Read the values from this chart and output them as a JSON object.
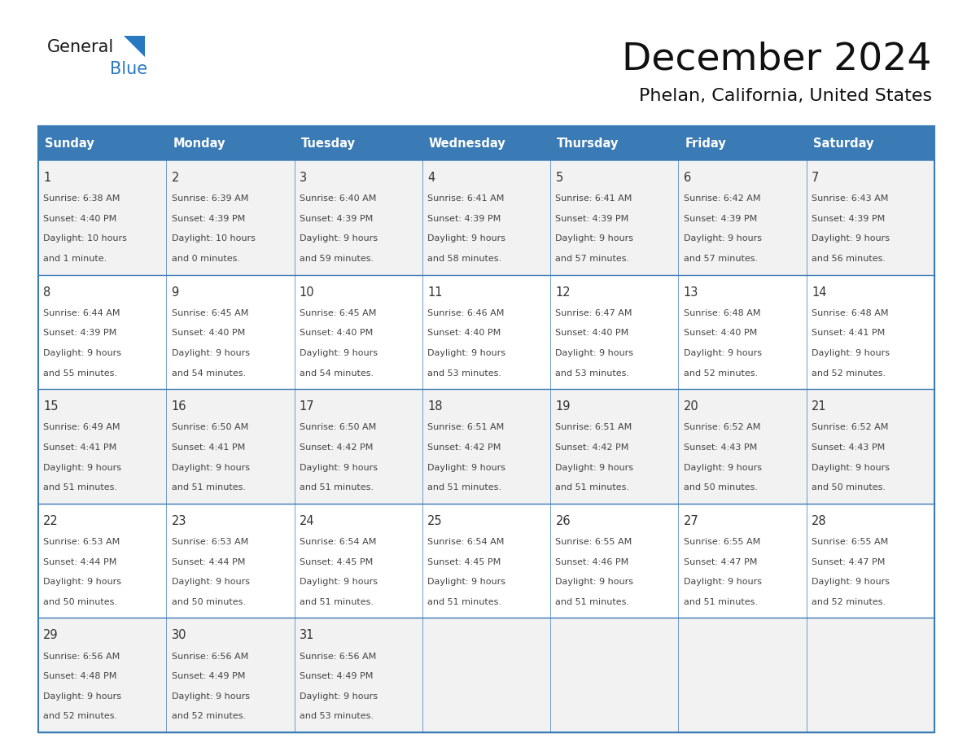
{
  "title": "December 2024",
  "subtitle": "Phelan, California, United States",
  "days_of_week": [
    "Sunday",
    "Monday",
    "Tuesday",
    "Wednesday",
    "Thursday",
    "Friday",
    "Saturday"
  ],
  "header_bg": "#3a7ab5",
  "header_text_color": "#ffffff",
  "row_bg_odd": "#f2f2f2",
  "row_bg_even": "#ffffff",
  "day_num_color": "#333333",
  "text_color": "#444444",
  "border_color": "#3a7ab5",
  "calendar_data": [
    [
      {
        "day": 1,
        "sunrise": "6:38 AM",
        "sunset": "4:40 PM",
        "daylight": "10 hours",
        "daylight2": "and 1 minute."
      },
      {
        "day": 2,
        "sunrise": "6:39 AM",
        "sunset": "4:39 PM",
        "daylight": "10 hours",
        "daylight2": "and 0 minutes."
      },
      {
        "day": 3,
        "sunrise": "6:40 AM",
        "sunset": "4:39 PM",
        "daylight": "9 hours",
        "daylight2": "and 59 minutes."
      },
      {
        "day": 4,
        "sunrise": "6:41 AM",
        "sunset": "4:39 PM",
        "daylight": "9 hours",
        "daylight2": "and 58 minutes."
      },
      {
        "day": 5,
        "sunrise": "6:41 AM",
        "sunset": "4:39 PM",
        "daylight": "9 hours",
        "daylight2": "and 57 minutes."
      },
      {
        "day": 6,
        "sunrise": "6:42 AM",
        "sunset": "4:39 PM",
        "daylight": "9 hours",
        "daylight2": "and 57 minutes."
      },
      {
        "day": 7,
        "sunrise": "6:43 AM",
        "sunset": "4:39 PM",
        "daylight": "9 hours",
        "daylight2": "and 56 minutes."
      }
    ],
    [
      {
        "day": 8,
        "sunrise": "6:44 AM",
        "sunset": "4:39 PM",
        "daylight": "9 hours",
        "daylight2": "and 55 minutes."
      },
      {
        "day": 9,
        "sunrise": "6:45 AM",
        "sunset": "4:40 PM",
        "daylight": "9 hours",
        "daylight2": "and 54 minutes."
      },
      {
        "day": 10,
        "sunrise": "6:45 AM",
        "sunset": "4:40 PM",
        "daylight": "9 hours",
        "daylight2": "and 54 minutes."
      },
      {
        "day": 11,
        "sunrise": "6:46 AM",
        "sunset": "4:40 PM",
        "daylight": "9 hours",
        "daylight2": "and 53 minutes."
      },
      {
        "day": 12,
        "sunrise": "6:47 AM",
        "sunset": "4:40 PM",
        "daylight": "9 hours",
        "daylight2": "and 53 minutes."
      },
      {
        "day": 13,
        "sunrise": "6:48 AM",
        "sunset": "4:40 PM",
        "daylight": "9 hours",
        "daylight2": "and 52 minutes."
      },
      {
        "day": 14,
        "sunrise": "6:48 AM",
        "sunset": "4:41 PM",
        "daylight": "9 hours",
        "daylight2": "and 52 minutes."
      }
    ],
    [
      {
        "day": 15,
        "sunrise": "6:49 AM",
        "sunset": "4:41 PM",
        "daylight": "9 hours",
        "daylight2": "and 51 minutes."
      },
      {
        "day": 16,
        "sunrise": "6:50 AM",
        "sunset": "4:41 PM",
        "daylight": "9 hours",
        "daylight2": "and 51 minutes."
      },
      {
        "day": 17,
        "sunrise": "6:50 AM",
        "sunset": "4:42 PM",
        "daylight": "9 hours",
        "daylight2": "and 51 minutes."
      },
      {
        "day": 18,
        "sunrise": "6:51 AM",
        "sunset": "4:42 PM",
        "daylight": "9 hours",
        "daylight2": "and 51 minutes."
      },
      {
        "day": 19,
        "sunrise": "6:51 AM",
        "sunset": "4:42 PM",
        "daylight": "9 hours",
        "daylight2": "and 51 minutes."
      },
      {
        "day": 20,
        "sunrise": "6:52 AM",
        "sunset": "4:43 PM",
        "daylight": "9 hours",
        "daylight2": "and 50 minutes."
      },
      {
        "day": 21,
        "sunrise": "6:52 AM",
        "sunset": "4:43 PM",
        "daylight": "9 hours",
        "daylight2": "and 50 minutes."
      }
    ],
    [
      {
        "day": 22,
        "sunrise": "6:53 AM",
        "sunset": "4:44 PM",
        "daylight": "9 hours",
        "daylight2": "and 50 minutes."
      },
      {
        "day": 23,
        "sunrise": "6:53 AM",
        "sunset": "4:44 PM",
        "daylight": "9 hours",
        "daylight2": "and 50 minutes."
      },
      {
        "day": 24,
        "sunrise": "6:54 AM",
        "sunset": "4:45 PM",
        "daylight": "9 hours",
        "daylight2": "and 51 minutes."
      },
      {
        "day": 25,
        "sunrise": "6:54 AM",
        "sunset": "4:45 PM",
        "daylight": "9 hours",
        "daylight2": "and 51 minutes."
      },
      {
        "day": 26,
        "sunrise": "6:55 AM",
        "sunset": "4:46 PM",
        "daylight": "9 hours",
        "daylight2": "and 51 minutes."
      },
      {
        "day": 27,
        "sunrise": "6:55 AM",
        "sunset": "4:47 PM",
        "daylight": "9 hours",
        "daylight2": "and 51 minutes."
      },
      {
        "day": 28,
        "sunrise": "6:55 AM",
        "sunset": "4:47 PM",
        "daylight": "9 hours",
        "daylight2": "and 52 minutes."
      }
    ],
    [
      {
        "day": 29,
        "sunrise": "6:56 AM",
        "sunset": "4:48 PM",
        "daylight": "9 hours",
        "daylight2": "and 52 minutes."
      },
      {
        "day": 30,
        "sunrise": "6:56 AM",
        "sunset": "4:49 PM",
        "daylight": "9 hours",
        "daylight2": "and 52 minutes."
      },
      {
        "day": 31,
        "sunrise": "6:56 AM",
        "sunset": "4:49 PM",
        "daylight": "9 hours",
        "daylight2": "and 53 minutes."
      },
      null,
      null,
      null,
      null
    ]
  ],
  "logo_general_color": "#1a1a1a",
  "logo_blue_color": "#2979c0",
  "logo_triangle_color": "#2979c0"
}
